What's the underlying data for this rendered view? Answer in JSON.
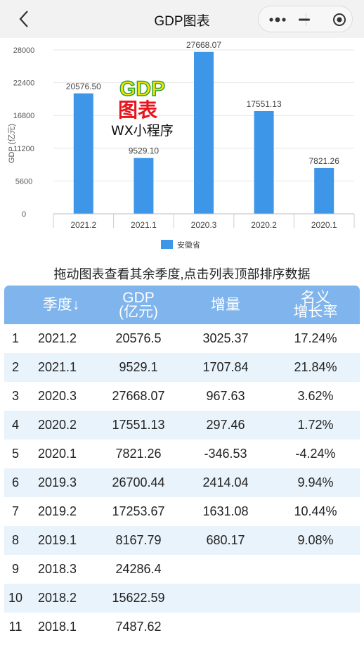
{
  "nav": {
    "title": "GDP图表"
  },
  "chart_data": {
    "type": "bar",
    "categories": [
      "2021.2",
      "2021.1",
      "2020.3",
      "2020.2",
      "2020.1"
    ],
    "series": [
      {
        "name": "安徽省",
        "values": [
          20576.5,
          9529.1,
          27668.07,
          17551.13,
          7821.26
        ],
        "color": "#3d96e8"
      }
    ],
    "value_labels": [
      "20576.50",
      "9529.10",
      "27668.07",
      "17551.13",
      "7821.26"
    ],
    "ylabel": "GDP (亿元)",
    "ylim": [
      0,
      28000
    ],
    "yticks": [
      0,
      5600,
      11200,
      16800,
      22400,
      28000
    ],
    "legend_position": "bottom"
  },
  "watermark": {
    "line1": "GDP",
    "line2": "图表",
    "line3": "WX小程序"
  },
  "caption": "拖动图表查看其余季度,点击列表顶部排序数据",
  "table": {
    "headers": {
      "quarter": "季度↓",
      "gdp_1": "GDP",
      "gdp_2": "(亿元)",
      "increase": "增量",
      "rate_1": "名义",
      "rate_2": "增长率"
    },
    "rows": [
      {
        "idx": "1",
        "quarter": "2021.2",
        "gdp": "20576.5",
        "increase": "3025.37",
        "rate": "17.24%"
      },
      {
        "idx": "2",
        "quarter": "2021.1",
        "gdp": "9529.1",
        "increase": "1707.84",
        "rate": "21.84%"
      },
      {
        "idx": "3",
        "quarter": "2020.3",
        "gdp": "27668.07",
        "increase": "967.63",
        "rate": "3.62%"
      },
      {
        "idx": "4",
        "quarter": "2020.2",
        "gdp": "17551.13",
        "increase": "297.46",
        "rate": "1.72%"
      },
      {
        "idx": "5",
        "quarter": "2020.1",
        "gdp": "7821.26",
        "increase": "-346.53",
        "rate": "-4.24%"
      },
      {
        "idx": "6",
        "quarter": "2019.3",
        "gdp": "26700.44",
        "increase": "2414.04",
        "rate": "9.94%"
      },
      {
        "idx": "7",
        "quarter": "2019.2",
        "gdp": "17253.67",
        "increase": "1631.08",
        "rate": "10.44%"
      },
      {
        "idx": "8",
        "quarter": "2019.1",
        "gdp": "8167.79",
        "increase": "680.17",
        "rate": "9.08%"
      },
      {
        "idx": "9",
        "quarter": "2018.3",
        "gdp": "24286.4",
        "increase": "",
        "rate": ""
      },
      {
        "idx": "10",
        "quarter": "2018.2",
        "gdp": "15622.59",
        "increase": "",
        "rate": ""
      },
      {
        "idx": "11",
        "quarter": "2018.1",
        "gdp": "7487.62",
        "increase": "",
        "rate": ""
      }
    ]
  }
}
